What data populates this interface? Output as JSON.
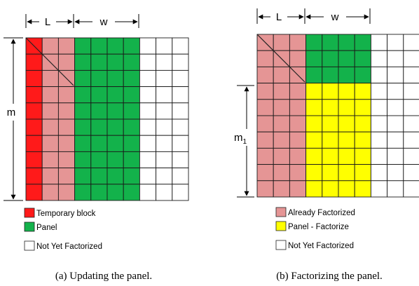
{
  "colors": {
    "red": "#ff1a1a",
    "pink": "#e59595",
    "green": "#13b24b",
    "yellow": "#ffff00",
    "white": "#ffffff",
    "grid": "#1a1a1a"
  },
  "panel_a": {
    "dim_L": "L",
    "dim_w": "w",
    "dim_m": "m",
    "legend": [
      {
        "label": "Temporary block",
        "color": "#ff1a1a"
      },
      {
        "label": "Panel",
        "color": "#13b24b"
      },
      {
        "label": "Not Yet Factorized",
        "color": "#ffffff"
      }
    ],
    "caption": "(a) Updating the panel."
  },
  "panel_b": {
    "dim_L": "L",
    "dim_w": "w",
    "dim_m_base": "m",
    "dim_m_sub": "1",
    "legend": [
      {
        "label": "Already Factorized",
        "color": "#e59595"
      },
      {
        "label": "Panel - Factorize",
        "color": "#ffff00"
      },
      {
        "label": "Not Yet Factorized",
        "color": "#ffffff"
      }
    ],
    "caption": "(b) Factorizing the panel."
  }
}
